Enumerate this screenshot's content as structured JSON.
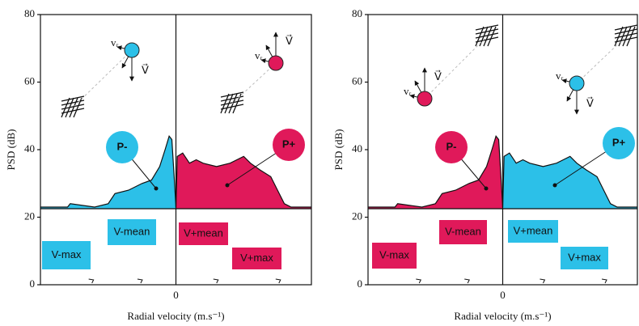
{
  "chart_data": [
    {
      "type": "area",
      "ylabel": "PSD (dB)",
      "xlabel": "Radial velocity (m.s⁻¹)",
      "xlim": [
        -1,
        1
      ],
      "xticks": [
        0
      ],
      "ylim": [
        0,
        80
      ],
      "yticks": [
        0,
        20,
        40,
        60,
        80
      ],
      "series": [
        {
          "color": "#2cc0e8",
          "x": [
            -1,
            -0.8,
            -0.78,
            -0.6,
            -0.5,
            -0.45,
            -0.35,
            -0.25,
            -0.18,
            -0.12,
            -0.08,
            -0.05,
            -0.03,
            -0.01,
            0
          ],
          "values": [
            23,
            23,
            24,
            23,
            24,
            27,
            28,
            30,
            31,
            35,
            40,
            44,
            43,
            30,
            23
          ]
        },
        {
          "color": "#e0195a",
          "x": [
            0,
            0.01,
            0.05,
            0.1,
            0.15,
            0.2,
            0.3,
            0.4,
            0.45,
            0.5,
            0.55,
            0.62,
            0.7,
            0.75,
            0.8,
            0.85,
            1
          ],
          "values": [
            23,
            38,
            39,
            36,
            37,
            36,
            35,
            36,
            37,
            38,
            36,
            34,
            32,
            28,
            24,
            23,
            23
          ]
        }
      ],
      "particle_labels": [
        "P-",
        "P+"
      ],
      "velocity_labels": [
        "V-max",
        "V-mean",
        "V+mean",
        "V+max"
      ],
      "vector_labels": [
        "vᵣ",
        "V⃗"
      ]
    },
    {
      "type": "area",
      "ylabel": "PSD (dB)",
      "xlabel": "Radial velocity (m.s⁻¹)",
      "xlim": [
        -1,
        1
      ],
      "xticks": [
        0
      ],
      "ylim": [
        0,
        80
      ],
      "yticks": [
        0,
        20,
        40,
        60,
        80
      ],
      "series": [
        {
          "color": "#e0195a",
          "x": [
            -1,
            -0.8,
            -0.78,
            -0.6,
            -0.5,
            -0.45,
            -0.35,
            -0.25,
            -0.18,
            -0.12,
            -0.08,
            -0.05,
            -0.03,
            -0.01,
            0
          ],
          "values": [
            23,
            23,
            24,
            23,
            24,
            27,
            28,
            30,
            31,
            35,
            40,
            44,
            43,
            30,
            23
          ]
        },
        {
          "color": "#2cc0e8",
          "x": [
            0,
            0.01,
            0.05,
            0.1,
            0.15,
            0.2,
            0.3,
            0.4,
            0.45,
            0.5,
            0.55,
            0.62,
            0.7,
            0.75,
            0.8,
            0.85,
            1
          ],
          "values": [
            23,
            38,
            39,
            36,
            37,
            36,
            35,
            36,
            37,
            38,
            36,
            34,
            32,
            28,
            24,
            23,
            23
          ]
        }
      ],
      "particle_labels": [
        "P-",
        "P+"
      ],
      "velocity_labels": [
        "V-max",
        "V-mean",
        "V+mean",
        "V+max"
      ],
      "vector_labels": [
        "vᵣ",
        "V⃗"
      ]
    }
  ]
}
